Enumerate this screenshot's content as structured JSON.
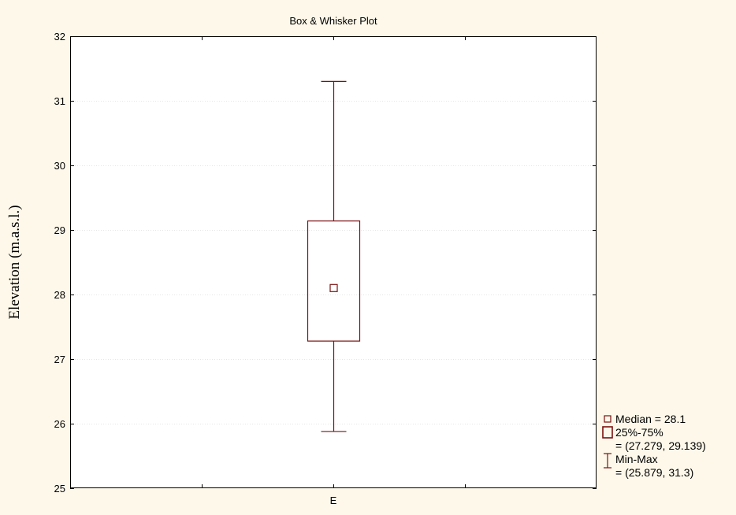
{
  "chart_data": {
    "type": "box",
    "title": "Box & Whisker Plot",
    "xlabel": "",
    "ylabel": "Elevation (m.a.s.l.)",
    "categories": [
      "E"
    ],
    "ylim": [
      25,
      32
    ],
    "yticks": [
      25,
      26,
      27,
      28,
      29,
      30,
      31,
      32
    ],
    "grid": true,
    "legend_position": "right-bottom",
    "colors": {
      "box": "#7a1010",
      "background": "#fdf8ea",
      "plot": "#ffffff"
    },
    "boxes": [
      {
        "category": "E",
        "median": 28.1,
        "q1": 27.279,
        "q3": 29.139,
        "min": 25.879,
        "max": 31.3
      }
    ],
    "legend": [
      {
        "symbol": "median",
        "lines": [
          "Median = 28.1"
        ]
      },
      {
        "symbol": "box",
        "lines": [
          "25%-75%",
          "= (27.279, 29.139)"
        ]
      },
      {
        "symbol": "whisker",
        "lines": [
          "Min-Max",
          "= (25.879, 31.3)"
        ]
      }
    ]
  }
}
